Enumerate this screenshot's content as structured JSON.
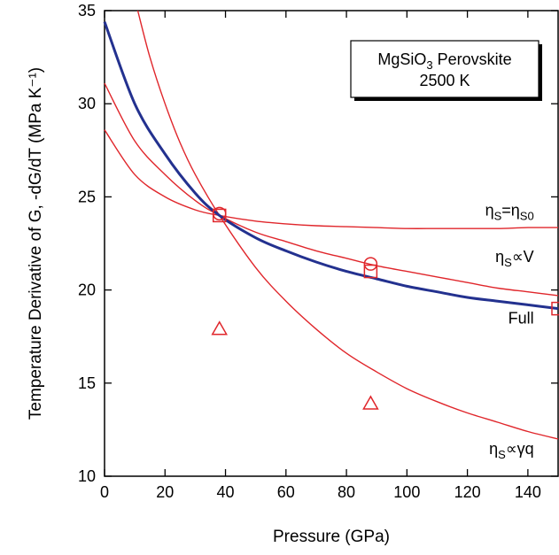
{
  "chart_data": {
    "type": "line",
    "xlabel": "Pressure (GPa)",
    "ylabel": "Temperature Derivative of G, -dG/dT (MPa K⁻¹)",
    "xlim": [
      0,
      150
    ],
    "ylim": [
      10,
      35
    ],
    "x_ticks": [
      "0",
      "20",
      "40",
      "60",
      "80",
      "100",
      "120",
      "140"
    ],
    "y_ticks": [
      "10",
      "15",
      "20",
      "25",
      "30",
      "35"
    ],
    "grid": false,
    "legend_box": {
      "line1": "MgSiO₃ Perovskite",
      "line2": "2500 K",
      "placement": "top-right"
    },
    "colors": {
      "full": "#23318f",
      "models": "#e0262b",
      "axis": "#000000"
    },
    "series": [
      {
        "name": "Full",
        "color": "#23318f",
        "x": [
          0,
          10,
          20,
          30,
          38,
          50,
          60,
          70,
          80,
          90,
          100,
          110,
          120,
          130,
          140,
          150
        ],
        "y": [
          34.4,
          30.0,
          27.3,
          25.2,
          24.0,
          22.8,
          22.1,
          21.5,
          21.0,
          20.6,
          20.2,
          19.9,
          19.6,
          19.4,
          19.2,
          19.0
        ]
      },
      {
        "name": "ηS=ηS0",
        "color": "#e0262b",
        "x": [
          0,
          10,
          20,
          30,
          38,
          50,
          60,
          70,
          80,
          90,
          100,
          110,
          120,
          130,
          140,
          150
        ],
        "y": [
          28.6,
          26.2,
          25.0,
          24.3,
          24.0,
          23.7,
          23.55,
          23.45,
          23.4,
          23.35,
          23.3,
          23.3,
          23.3,
          23.3,
          23.35,
          23.35
        ]
      },
      {
        "name": "ηS∝V",
        "color": "#e0262b",
        "x": [
          0,
          10,
          20,
          30,
          38,
          50,
          60,
          70,
          80,
          90,
          100,
          110,
          120,
          130,
          140,
          150
        ],
        "y": [
          31.1,
          28.0,
          26.2,
          24.8,
          24.0,
          23.1,
          22.6,
          22.1,
          21.7,
          21.3,
          21.0,
          20.7,
          20.4,
          20.1,
          19.9,
          19.7
        ]
      },
      {
        "name": "ηS∝γq",
        "color": "#e0262b",
        "x": [
          11,
          15,
          20,
          25,
          30,
          38,
          50,
          60,
          70,
          80,
          90,
          100,
          110,
          120,
          130,
          140,
          150
        ],
        "y": [
          35.0,
          32.5,
          30.0,
          27.9,
          26.2,
          24.0,
          21.2,
          19.4,
          17.9,
          16.6,
          15.6,
          14.7,
          14.0,
          13.4,
          12.9,
          12.4,
          12.0
        ]
      }
    ],
    "markers": [
      {
        "shape": "circle",
        "x": [
          38,
          88
        ],
        "y": [
          24.1,
          21.4
        ]
      },
      {
        "shape": "square",
        "x": [
          38,
          88,
          150
        ],
        "y": [
          24.0,
          21.0,
          19.0
        ]
      },
      {
        "shape": "triangle",
        "x": [
          38,
          88
        ],
        "y": [
          17.9,
          13.9
        ]
      }
    ],
    "annotations": [
      {
        "id": "eta-s0",
        "base": "η",
        "sub1": "S",
        "mid": "=η",
        "sub2": "S0",
        "anchor": {
          "x": 142,
          "y": 24.0
        }
      },
      {
        "id": "eta-v",
        "base": "η",
        "sub1": "S",
        "mid": "∝V",
        "sub2": "",
        "anchor": {
          "x": 142,
          "y": 21.5
        }
      },
      {
        "id": "full",
        "base": "Full",
        "sub1": "",
        "mid": "",
        "sub2": "",
        "anchor": {
          "x": 142,
          "y": 18.2
        }
      },
      {
        "id": "eta-gq",
        "base": "η",
        "sub1": "S",
        "mid": "∝γq",
        "sub2": "",
        "anchor": {
          "x": 142,
          "y": 11.2
        }
      }
    ]
  }
}
